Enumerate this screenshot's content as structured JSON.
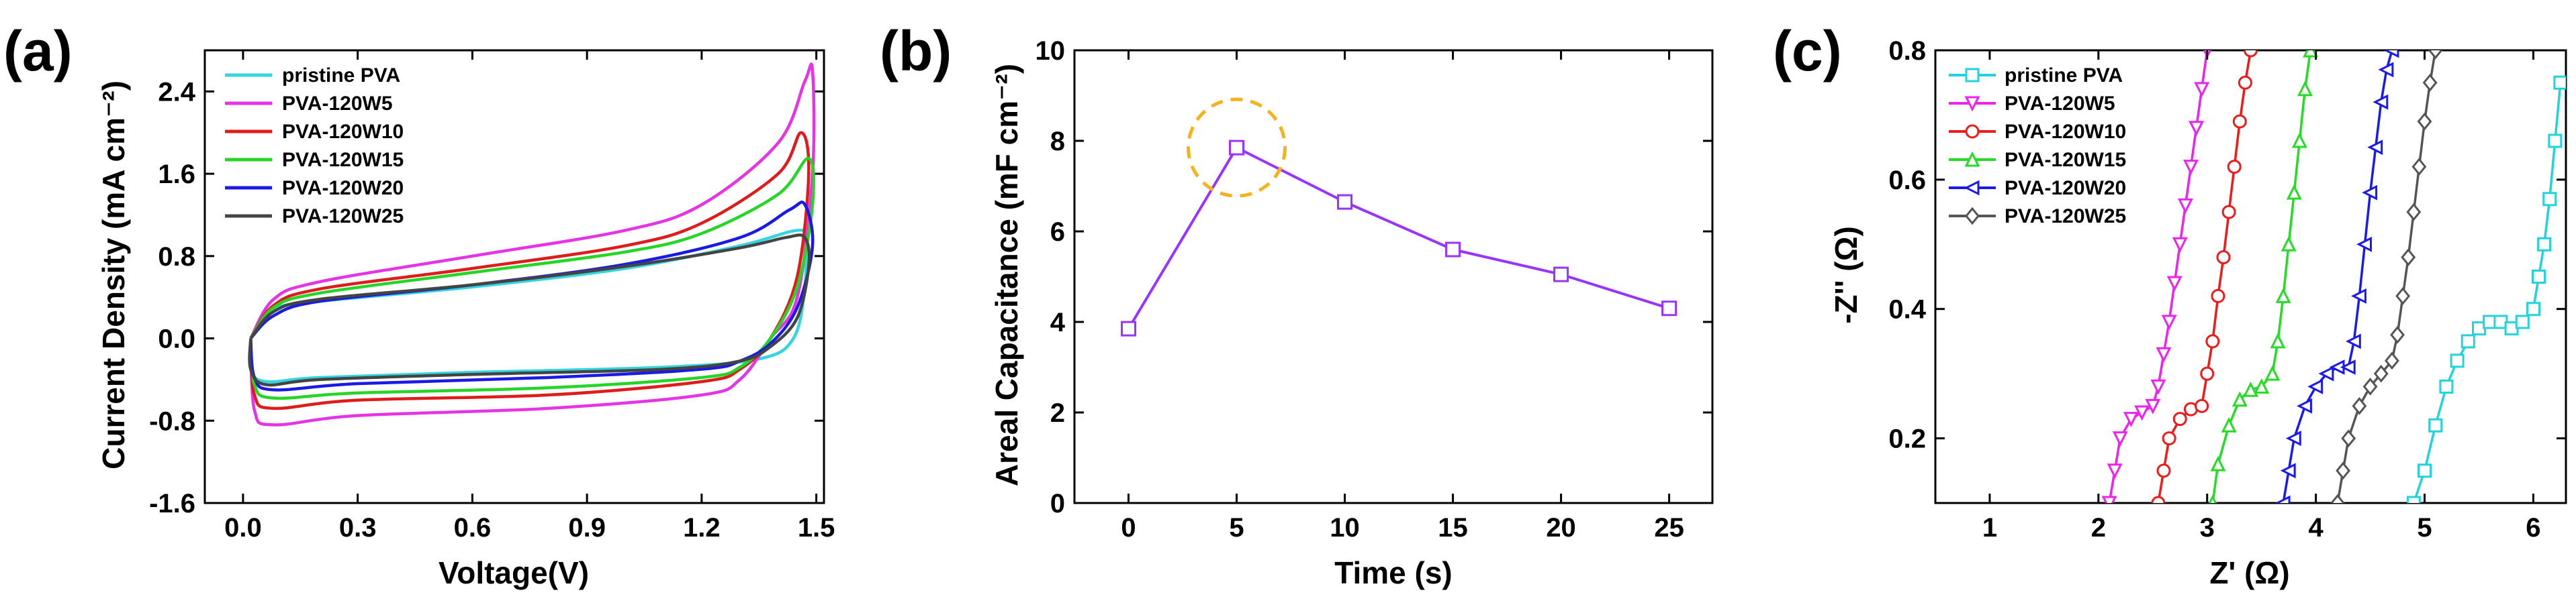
{
  "chart_data": [
    {
      "type": "line",
      "panel_label": "(a)",
      "title": "",
      "xlabel": "Voltage(V)",
      "ylabel": "Current Density (mA cm⁻²)",
      "xlim": [
        -0.1,
        1.52
      ],
      "ylim": [
        -1.6,
        2.8
      ],
      "xticks": [
        0.0,
        0.3,
        0.6,
        0.9,
        1.2,
        1.5
      ],
      "xtick_labels": [
        "0.0",
        "0.3",
        "0.6",
        "0.9",
        "1.2",
        "1.5"
      ],
      "yticks": [
        -1.6,
        -0.8,
        0.0,
        0.8,
        1.6,
        2.4
      ],
      "ytick_labels": [
        "-1.6",
        "-0.8",
        "0.0",
        "0.8",
        "1.6",
        "2.4"
      ],
      "legend_position": "top-left",
      "series": [
        {
          "name": "pristine PVA",
          "color": "#33d6e0",
          "upper": [
            [
              0.02,
              0.0
            ],
            [
              0.08,
              0.28
            ],
            [
              0.2,
              0.36
            ],
            [
              0.6,
              0.5
            ],
            [
              1.0,
              0.68
            ],
            [
              1.3,
              0.9
            ],
            [
              1.45,
              1.05
            ],
            [
              1.47,
              0.95
            ]
          ],
          "lower": [
            [
              1.47,
              0.95
            ],
            [
              1.47,
              0.5
            ],
            [
              1.44,
              0.0
            ],
            [
              1.35,
              -0.2
            ],
            [
              1.1,
              -0.28
            ],
            [
              0.6,
              -0.33
            ],
            [
              0.2,
              -0.38
            ],
            [
              0.06,
              -0.42
            ],
            [
              0.02,
              -0.3
            ],
            [
              0.02,
              0.0
            ]
          ]
        },
        {
          "name": "PVA-120W5",
          "color": "#e533e5",
          "upper": [
            [
              0.02,
              0.0
            ],
            [
              0.08,
              0.38
            ],
            [
              0.2,
              0.55
            ],
            [
              0.6,
              0.8
            ],
            [
              1.0,
              1.05
            ],
            [
              1.2,
              1.3
            ],
            [
              1.4,
              1.9
            ],
            [
              1.47,
              2.5
            ],
            [
              1.49,
              2.6
            ]
          ],
          "lower": [
            [
              1.49,
              2.6
            ],
            [
              1.49,
              1.6
            ],
            [
              1.45,
              0.4
            ],
            [
              1.38,
              0.0
            ],
            [
              1.3,
              -0.4
            ],
            [
              1.2,
              -0.55
            ],
            [
              0.8,
              -0.68
            ],
            [
              0.3,
              -0.75
            ],
            [
              0.08,
              -0.84
            ],
            [
              0.03,
              -0.7
            ],
            [
              0.02,
              0.0
            ]
          ]
        },
        {
          "name": "PVA-120W10",
          "color": "#e01b1b",
          "upper": [
            [
              0.02,
              0.0
            ],
            [
              0.08,
              0.32
            ],
            [
              0.2,
              0.48
            ],
            [
              0.6,
              0.68
            ],
            [
              1.0,
              0.9
            ],
            [
              1.2,
              1.12
            ],
            [
              1.4,
              1.6
            ],
            [
              1.46,
              2.0
            ]
          ],
          "lower": [
            [
              1.46,
              2.0
            ],
            [
              1.48,
              1.6
            ],
            [
              1.45,
              0.6
            ],
            [
              1.38,
              0.0
            ],
            [
              1.3,
              -0.3
            ],
            [
              1.2,
              -0.42
            ],
            [
              0.8,
              -0.55
            ],
            [
              0.3,
              -0.6
            ],
            [
              0.08,
              -0.68
            ],
            [
              0.03,
              -0.55
            ],
            [
              0.02,
              0.0
            ]
          ]
        },
        {
          "name": "PVA-120W15",
          "color": "#26d626",
          "upper": [
            [
              0.02,
              0.0
            ],
            [
              0.08,
              0.3
            ],
            [
              0.2,
              0.44
            ],
            [
              0.6,
              0.64
            ],
            [
              1.0,
              0.84
            ],
            [
              1.2,
              1.02
            ],
            [
              1.4,
              1.4
            ],
            [
              1.48,
              1.75
            ]
          ],
          "lower": [
            [
              1.48,
              1.75
            ],
            [
              1.49,
              1.3
            ],
            [
              1.45,
              0.5
            ],
            [
              1.38,
              0.0
            ],
            [
              1.3,
              -0.28
            ],
            [
              1.2,
              -0.38
            ],
            [
              0.8,
              -0.48
            ],
            [
              0.3,
              -0.53
            ],
            [
              0.08,
              -0.58
            ],
            [
              0.03,
              -0.45
            ],
            [
              0.02,
              0.0
            ]
          ]
        },
        {
          "name": "PVA-120W20",
          "color": "#1a1ae6",
          "upper": [
            [
              0.02,
              0.0
            ],
            [
              0.08,
              0.22
            ],
            [
              0.2,
              0.36
            ],
            [
              0.6,
              0.52
            ],
            [
              1.0,
              0.72
            ],
            [
              1.3,
              0.98
            ],
            [
              1.43,
              1.25
            ],
            [
              1.47,
              1.3
            ]
          ],
          "lower": [
            [
              1.47,
              1.3
            ],
            [
              1.49,
              0.9
            ],
            [
              1.45,
              0.3
            ],
            [
              1.38,
              -0.05
            ],
            [
              1.3,
              -0.22
            ],
            [
              1.2,
              -0.3
            ],
            [
              0.8,
              -0.38
            ],
            [
              0.3,
              -0.44
            ],
            [
              0.08,
              -0.5
            ],
            [
              0.03,
              -0.38
            ],
            [
              0.02,
              0.0
            ]
          ]
        },
        {
          "name": "PVA-120W25",
          "color": "#444444",
          "upper": [
            [
              0.02,
              0.0
            ],
            [
              0.08,
              0.26
            ],
            [
              0.2,
              0.38
            ],
            [
              0.6,
              0.52
            ],
            [
              1.0,
              0.7
            ],
            [
              1.3,
              0.88
            ],
            [
              1.42,
              0.98
            ],
            [
              1.47,
              0.98
            ]
          ],
          "lower": [
            [
              1.47,
              0.98
            ],
            [
              1.48,
              0.7
            ],
            [
              1.45,
              0.2
            ],
            [
              1.38,
              -0.08
            ],
            [
              1.3,
              -0.22
            ],
            [
              1.1,
              -0.3
            ],
            [
              0.6,
              -0.35
            ],
            [
              0.2,
              -0.4
            ],
            [
              0.06,
              -0.45
            ],
            [
              0.02,
              -0.3
            ],
            [
              0.02,
              0.0
            ]
          ]
        }
      ]
    },
    {
      "type": "line",
      "panel_label": "(b)",
      "title": "",
      "xlabel": "Time (s)",
      "ylabel": "Areal Capacitance (mF cm⁻²)",
      "xlim": [
        -2.5,
        27
      ],
      "ylim": [
        0,
        10
      ],
      "xticks": [
        0,
        5,
        10,
        15,
        20,
        25
      ],
      "xtick_labels": [
        "0",
        "5",
        "10",
        "15",
        "20",
        "25"
      ],
      "yticks": [
        0,
        2,
        4,
        6,
        8,
        10
      ],
      "ytick_labels": [
        "0",
        "2",
        "4",
        "6",
        "8",
        "10"
      ],
      "series": [
        {
          "name": "Areal Capacitance",
          "color": "#9933ff",
          "x": [
            0,
            5,
            10,
            15,
            20,
            25
          ],
          "y": [
            3.85,
            7.85,
            6.65,
            5.6,
            5.05,
            4.3
          ]
        }
      ],
      "annotation": {
        "type": "dashed-circle",
        "color": "#f5b21b",
        "center_x": 5,
        "center_y": 7.85
      }
    },
    {
      "type": "scatter",
      "panel_label": "(c)",
      "title": "",
      "xlabel": "Z' (Ω)",
      "ylabel": "-Z'' (Ω)",
      "xlim": [
        0.5,
        6.3
      ],
      "ylim": [
        0.1,
        0.8
      ],
      "xticks": [
        1,
        2,
        3,
        4,
        5,
        6
      ],
      "xtick_labels": [
        "1",
        "2",
        "3",
        "4",
        "5",
        "6"
      ],
      "yticks": [
        0.2,
        0.4,
        0.6,
        0.8
      ],
      "ytick_labels": [
        "0.2",
        "0.4",
        "0.6",
        "0.8"
      ],
      "legend_position": "top-left",
      "series": [
        {
          "name": "pristine PVA",
          "color": "#22d3dd",
          "marker": "square",
          "x": [
            4.9,
            5.0,
            5.1,
            5.2,
            5.3,
            5.4,
            5.5,
            5.6,
            5.7,
            5.8,
            5.9,
            6.0,
            6.05,
            6.1,
            6.15,
            6.2,
            6.25
          ],
          "y": [
            0.1,
            0.15,
            0.22,
            0.28,
            0.32,
            0.35,
            0.37,
            0.38,
            0.38,
            0.37,
            0.38,
            0.4,
            0.45,
            0.5,
            0.57,
            0.66,
            0.75
          ]
        },
        {
          "name": "PVA-120W5",
          "color": "#ee22ee",
          "marker": "triangle-down",
          "x": [
            2.1,
            2.15,
            2.2,
            2.3,
            2.4,
            2.5,
            2.55,
            2.6,
            2.65,
            2.7,
            2.75,
            2.8,
            2.85,
            2.9,
            2.95,
            3.0
          ],
          "y": [
            0.1,
            0.15,
            0.2,
            0.23,
            0.24,
            0.25,
            0.28,
            0.33,
            0.38,
            0.44,
            0.5,
            0.56,
            0.62,
            0.68,
            0.74,
            0.8
          ]
        },
        {
          "name": "PVA-120W10",
          "color": "#ee1b1b",
          "marker": "circle",
          "x": [
            2.55,
            2.6,
            2.65,
            2.75,
            2.85,
            2.95,
            3.0,
            3.05,
            3.1,
            3.15,
            3.2,
            3.25,
            3.3,
            3.35,
            3.4
          ],
          "y": [
            0.1,
            0.15,
            0.2,
            0.23,
            0.245,
            0.25,
            0.3,
            0.35,
            0.42,
            0.48,
            0.55,
            0.62,
            0.69,
            0.75,
            0.8
          ]
        },
        {
          "name": "PVA-120W15",
          "color": "#22dd22",
          "marker": "triangle-up",
          "x": [
            3.05,
            3.1,
            3.2,
            3.3,
            3.4,
            3.5,
            3.6,
            3.65,
            3.7,
            3.75,
            3.8,
            3.85,
            3.9,
            3.95
          ],
          "y": [
            0.1,
            0.16,
            0.22,
            0.26,
            0.275,
            0.28,
            0.3,
            0.35,
            0.42,
            0.5,
            0.58,
            0.66,
            0.74,
            0.8
          ]
        },
        {
          "name": "PVA-120W20",
          "color": "#1a1aee",
          "marker": "triangle-left",
          "x": [
            3.7,
            3.75,
            3.8,
            3.9,
            4.0,
            4.1,
            4.2,
            4.3,
            4.35,
            4.4,
            4.45,
            4.5,
            4.55,
            4.6,
            4.65,
            4.7
          ],
          "y": [
            0.1,
            0.15,
            0.2,
            0.25,
            0.28,
            0.3,
            0.31,
            0.31,
            0.35,
            0.42,
            0.5,
            0.58,
            0.65,
            0.72,
            0.77,
            0.8
          ]
        },
        {
          "name": "PVA-120W25",
          "color": "#555555",
          "marker": "diamond",
          "x": [
            4.2,
            4.25,
            4.3,
            4.4,
            4.5,
            4.6,
            4.7,
            4.75,
            4.8,
            4.85,
            4.9,
            4.95,
            5.0,
            5.05,
            5.1
          ],
          "y": [
            0.1,
            0.15,
            0.2,
            0.25,
            0.28,
            0.3,
            0.32,
            0.36,
            0.42,
            0.48,
            0.55,
            0.62,
            0.69,
            0.75,
            0.8
          ]
        }
      ]
    }
  ]
}
